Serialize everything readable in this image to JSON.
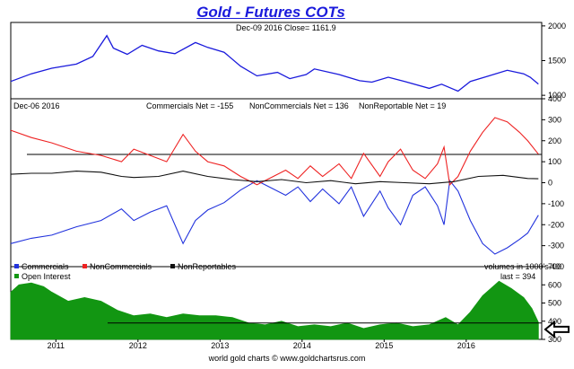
{
  "title": "Gold - Futures COTs",
  "footer": "world gold charts © www.goldchartsrus.com",
  "colors": {
    "commercials": "#2233dd",
    "noncommercials": "#ee2222",
    "nonreportables": "#111111",
    "open_interest": "#129612",
    "price": "#1a1adc",
    "background": "#ffffff"
  },
  "chart_data": [
    {
      "type": "line",
      "panel": "price",
      "header": "Dec-09  2016   Close= 1161.9",
      "y_ticks": [
        "2000",
        "1500",
        "1000"
      ],
      "ylim": [
        950,
        2050
      ],
      "x_ticks": [
        "2011",
        "2012",
        "2013",
        "2014",
        "2015",
        "2016"
      ],
      "series": [
        {
          "name": "Gold",
          "points": [
            [
              2010.5,
              1200
            ],
            [
              2010.75,
              1310
            ],
            [
              2011.0,
              1390
            ],
            [
              2011.3,
              1450
            ],
            [
              2011.5,
              1560
            ],
            [
              2011.67,
              1860
            ],
            [
              2011.75,
              1680
            ],
            [
              2011.92,
              1590
            ],
            [
              2012.1,
              1720
            ],
            [
              2012.3,
              1640
            ],
            [
              2012.5,
              1600
            ],
            [
              2012.75,
              1760
            ],
            [
              2012.9,
              1690
            ],
            [
              2013.1,
              1620
            ],
            [
              2013.3,
              1420
            ],
            [
              2013.5,
              1280
            ],
            [
              2013.75,
              1330
            ],
            [
              2013.9,
              1240
            ],
            [
              2014.1,
              1300
            ],
            [
              2014.2,
              1380
            ],
            [
              2014.5,
              1300
            ],
            [
              2014.75,
              1210
            ],
            [
              2014.9,
              1190
            ],
            [
              2015.1,
              1260
            ],
            [
              2015.3,
              1200
            ],
            [
              2015.6,
              1100
            ],
            [
              2015.75,
              1160
            ],
            [
              2015.95,
              1060
            ],
            [
              2016.1,
              1200
            ],
            [
              2016.3,
              1270
            ],
            [
              2016.55,
              1360
            ],
            [
              2016.75,
              1310
            ],
            [
              2016.83,
              1260
            ],
            [
              2016.93,
              1162
            ]
          ]
        }
      ]
    },
    {
      "type": "line",
      "panel": "net-positions",
      "header": "Dec-06  2016",
      "ylim": [
        -400,
        400
      ],
      "y_ticks": [
        "400",
        "300",
        "200",
        "100",
        "0",
        "-100",
        "-200",
        "-300",
        "-400"
      ],
      "reference_line": 135,
      "series": [
        {
          "name": "Commercials",
          "label": "Commercials Net = -155",
          "legend": "Commercials",
          "points": [
            [
              2010.5,
              -290
            ],
            [
              2010.75,
              -265
            ],
            [
              2011.0,
              -250
            ],
            [
              2011.3,
              -210
            ],
            [
              2011.6,
              -180
            ],
            [
              2011.85,
              -125
            ],
            [
              2012.0,
              -180
            ],
            [
              2012.2,
              -140
            ],
            [
              2012.4,
              -110
            ],
            [
              2012.6,
              -290
            ],
            [
              2012.75,
              -180
            ],
            [
              2012.9,
              -130
            ],
            [
              2013.1,
              -95
            ],
            [
              2013.3,
              -35
            ],
            [
              2013.5,
              10
            ],
            [
              2013.7,
              -30
            ],
            [
              2013.85,
              -60
            ],
            [
              2014.0,
              -20
            ],
            [
              2014.15,
              -90
            ],
            [
              2014.3,
              -30
            ],
            [
              2014.5,
              -100
            ],
            [
              2014.65,
              -20
            ],
            [
              2014.8,
              -160
            ],
            [
              2015.0,
              -40
            ],
            [
              2015.1,
              -120
            ],
            [
              2015.25,
              -200
            ],
            [
              2015.4,
              -60
            ],
            [
              2015.55,
              -20
            ],
            [
              2015.7,
              -110
            ],
            [
              2015.78,
              -200
            ],
            [
              2015.85,
              10
            ],
            [
              2015.95,
              -40
            ],
            [
              2016.1,
              -180
            ],
            [
              2016.25,
              -290
            ],
            [
              2016.4,
              -340
            ],
            [
              2016.55,
              -310
            ],
            [
              2016.7,
              -270
            ],
            [
              2016.8,
              -240
            ],
            [
              2016.93,
              -155
            ]
          ]
        },
        {
          "name": "NonCommercials",
          "label": "NonCommercials Net = 136",
          "legend": "NonCommercials",
          "points": [
            [
              2010.5,
              250
            ],
            [
              2010.75,
              215
            ],
            [
              2011.0,
              190
            ],
            [
              2011.3,
              150
            ],
            [
              2011.6,
              130
            ],
            [
              2011.85,
              100
            ],
            [
              2012.0,
              160
            ],
            [
              2012.2,
              130
            ],
            [
              2012.4,
              100
            ],
            [
              2012.6,
              230
            ],
            [
              2012.75,
              150
            ],
            [
              2012.9,
              100
            ],
            [
              2013.1,
              80
            ],
            [
              2013.3,
              30
            ],
            [
              2013.5,
              -10
            ],
            [
              2013.7,
              30
            ],
            [
              2013.85,
              60
            ],
            [
              2014.0,
              20
            ],
            [
              2014.15,
              80
            ],
            [
              2014.3,
              30
            ],
            [
              2014.5,
              90
            ],
            [
              2014.65,
              20
            ],
            [
              2014.8,
              140
            ],
            [
              2015.0,
              30
            ],
            [
              2015.1,
              100
            ],
            [
              2015.25,
              160
            ],
            [
              2015.4,
              60
            ],
            [
              2015.55,
              20
            ],
            [
              2015.7,
              90
            ],
            [
              2015.78,
              170
            ],
            [
              2015.85,
              -10
            ],
            [
              2015.95,
              30
            ],
            [
              2016.1,
              150
            ],
            [
              2016.25,
              240
            ],
            [
              2016.4,
              310
            ],
            [
              2016.55,
              290
            ],
            [
              2016.7,
              240
            ],
            [
              2016.8,
              200
            ],
            [
              2016.93,
              136
            ]
          ]
        },
        {
          "name": "NonReportables",
          "label": "NonReportable Net = 19",
          "legend": "NonReportables",
          "points": [
            [
              2010.5,
              40
            ],
            [
              2010.75,
              45
            ],
            [
              2011.0,
              45
            ],
            [
              2011.3,
              55
            ],
            [
              2011.6,
              50
            ],
            [
              2011.85,
              30
            ],
            [
              2012.0,
              25
            ],
            [
              2012.3,
              30
            ],
            [
              2012.6,
              55
            ],
            [
              2012.9,
              30
            ],
            [
              2013.2,
              15
            ],
            [
              2013.5,
              5
            ],
            [
              2013.8,
              15
            ],
            [
              2014.1,
              0
            ],
            [
              2014.4,
              10
            ],
            [
              2014.7,
              -5
            ],
            [
              2015.0,
              5
            ],
            [
              2015.3,
              0
            ],
            [
              2015.6,
              -5
            ],
            [
              2015.9,
              5
            ],
            [
              2016.2,
              30
            ],
            [
              2016.5,
              35
            ],
            [
              2016.8,
              20
            ],
            [
              2016.93,
              19
            ]
          ]
        }
      ]
    },
    {
      "type": "area",
      "panel": "open-interest",
      "series_name": "Open Interest",
      "units_note": "volumes in 1000's",
      "last": "last = 394",
      "ylim": [
        300,
        700
      ],
      "y_ticks": [
        "700",
        "600",
        "500",
        "400",
        "300"
      ],
      "reference_line": 390,
      "points": [
        [
          2010.5,
          560
        ],
        [
          2010.6,
          600
        ],
        [
          2010.75,
          610
        ],
        [
          2010.9,
          590
        ],
        [
          2011.0,
          560
        ],
        [
          2011.2,
          510
        ],
        [
          2011.4,
          530
        ],
        [
          2011.6,
          510
        ],
        [
          2011.8,
          460
        ],
        [
          2012.0,
          430
        ],
        [
          2012.2,
          440
        ],
        [
          2012.4,
          420
        ],
        [
          2012.6,
          440
        ],
        [
          2012.8,
          430
        ],
        [
          2013.0,
          430
        ],
        [
          2013.2,
          420
        ],
        [
          2013.4,
          390
        ],
        [
          2013.6,
          380
        ],
        [
          2013.8,
          400
        ],
        [
          2014.0,
          370
        ],
        [
          2014.2,
          380
        ],
        [
          2014.4,
          370
        ],
        [
          2014.6,
          390
        ],
        [
          2014.8,
          360
        ],
        [
          2015.0,
          380
        ],
        [
          2015.2,
          390
        ],
        [
          2015.4,
          370
        ],
        [
          2015.6,
          380
        ],
        [
          2015.8,
          420
        ],
        [
          2015.95,
          380
        ],
        [
          2016.1,
          450
        ],
        [
          2016.25,
          540
        ],
        [
          2016.45,
          620
        ],
        [
          2016.6,
          580
        ],
        [
          2016.75,
          530
        ],
        [
          2016.85,
          470
        ],
        [
          2016.93,
          394
        ]
      ]
    }
  ]
}
